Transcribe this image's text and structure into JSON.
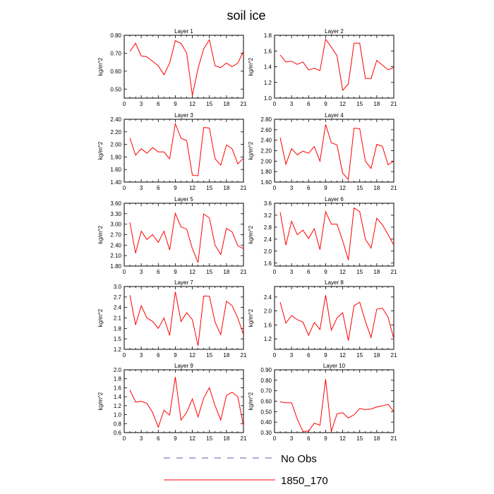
{
  "figure": {
    "title": "soil ice",
    "legend": [
      {
        "label": "No Obs",
        "color": "#5a5ab4",
        "style": "dashed"
      },
      {
        "label": "1850_170",
        "color": "#ff0000",
        "style": "solid"
      }
    ]
  },
  "chart_data": [
    {
      "type": "line",
      "title": "Layer 1",
      "ylabel": "kg/m^2",
      "xlim": [
        0,
        21
      ],
      "xticks": [
        0,
        3,
        6,
        9,
        12,
        15,
        18,
        21
      ],
      "ylim": [
        0.45,
        0.8
      ],
      "yticks": [
        "0.50",
        "0.60",
        "0.70",
        "0.80"
      ],
      "x": [
        1,
        2,
        3,
        4,
        5,
        6,
        7,
        8,
        9,
        10,
        11,
        12,
        13,
        14,
        15,
        16,
        17,
        18,
        19,
        20,
        21
      ],
      "series": [
        {
          "name": "1850_170",
          "color": "#ff0000",
          "values": [
            0.71,
            0.755,
            0.685,
            0.68,
            0.655,
            0.63,
            0.58,
            0.645,
            0.77,
            0.755,
            0.7,
            0.465,
            0.615,
            0.725,
            0.775,
            0.63,
            0.62,
            0.645,
            0.625,
            0.645,
            0.71
          ]
        }
      ]
    },
    {
      "type": "line",
      "title": "Layer 2",
      "ylabel": "kg/m^2",
      "xlim": [
        0,
        21
      ],
      "xticks": [
        0,
        3,
        6,
        9,
        12,
        15,
        18,
        21
      ],
      "ylim": [
        1.0,
        1.8
      ],
      "yticks": [
        "1.0",
        "1.2",
        "1.4",
        "1.6",
        "1.8"
      ],
      "x": [
        1,
        2,
        3,
        4,
        5,
        6,
        7,
        8,
        9,
        10,
        11,
        12,
        13,
        14,
        15,
        16,
        17,
        18,
        19,
        20,
        21
      ],
      "series": [
        {
          "name": "1850_170",
          "color": "#ff0000",
          "values": [
            1.55,
            1.46,
            1.47,
            1.43,
            1.46,
            1.36,
            1.38,
            1.35,
            1.75,
            1.65,
            1.54,
            1.1,
            1.18,
            1.7,
            1.7,
            1.25,
            1.25,
            1.48,
            1.42,
            1.36,
            1.39
          ]
        }
      ]
    },
    {
      "type": "line",
      "title": "Layer 3",
      "ylabel": "kg/m^2",
      "xlim": [
        0,
        21
      ],
      "xticks": [
        0,
        3,
        6,
        9,
        12,
        15,
        18,
        21
      ],
      "ylim": [
        1.4,
        2.4
      ],
      "yticks": [
        "1.40",
        "1.60",
        "1.80",
        "2.00",
        "2.20",
        "2.40"
      ],
      "x": [
        1,
        2,
        3,
        4,
        5,
        6,
        7,
        8,
        9,
        10,
        11,
        12,
        13,
        14,
        15,
        16,
        17,
        18,
        19,
        20,
        21
      ],
      "series": [
        {
          "name": "1850_170",
          "color": "#ff0000",
          "values": [
            2.1,
            1.83,
            1.93,
            1.86,
            1.95,
            1.88,
            1.88,
            1.77,
            2.33,
            2.1,
            2.06,
            1.51,
            1.5,
            2.27,
            2.26,
            1.77,
            1.67,
            1.99,
            1.93,
            1.69,
            1.78
          ]
        }
      ]
    },
    {
      "type": "line",
      "title": "Layer 4",
      "ylabel": "kg/m^2",
      "xlim": [
        0,
        21
      ],
      "xticks": [
        0,
        3,
        6,
        9,
        12,
        15,
        18,
        21
      ],
      "ylim": [
        1.6,
        2.8
      ],
      "yticks": [
        "1.60",
        "1.80",
        "2.00",
        "2.20",
        "2.40",
        "2.60",
        "2.80"
      ],
      "x": [
        1,
        2,
        3,
        4,
        5,
        6,
        7,
        8,
        9,
        10,
        11,
        12,
        13,
        14,
        15,
        16,
        17,
        18,
        19,
        20,
        21
      ],
      "series": [
        {
          "name": "1850_170",
          "color": "#ff0000",
          "values": [
            2.45,
            1.94,
            2.24,
            2.12,
            2.19,
            2.15,
            2.28,
            2.0,
            2.7,
            2.35,
            2.31,
            1.77,
            1.65,
            2.63,
            2.62,
            2.0,
            1.86,
            2.32,
            2.28,
            1.93,
            2.0
          ]
        }
      ]
    },
    {
      "type": "line",
      "title": "Layer 5",
      "ylabel": "kg/m^2",
      "xlim": [
        0,
        21
      ],
      "xticks": [
        0,
        3,
        6,
        9,
        12,
        15,
        18,
        21
      ],
      "ylim": [
        1.8,
        3.6
      ],
      "yticks": [
        "1.80",
        "2.10",
        "2.40",
        "2.70",
        "3.00",
        "3.30",
        "3.60"
      ],
      "x": [
        1,
        2,
        3,
        4,
        5,
        6,
        7,
        8,
        9,
        10,
        11,
        12,
        13,
        14,
        15,
        16,
        17,
        18,
        19,
        20,
        21
      ],
      "series": [
        {
          "name": "1850_170",
          "color": "#ff0000",
          "values": [
            3.05,
            2.17,
            2.8,
            2.56,
            2.7,
            2.48,
            2.8,
            2.26,
            3.31,
            2.92,
            2.86,
            2.3,
            1.9,
            3.29,
            3.18,
            2.4,
            2.13,
            2.88,
            2.78,
            2.38,
            2.3
          ]
        }
      ]
    },
    {
      "type": "line",
      "title": "Layer 6",
      "ylabel": "kg/m^2",
      "xlim": [
        0,
        21
      ],
      "xticks": [
        0,
        3,
        6,
        9,
        12,
        15,
        18,
        21
      ],
      "ylim": [
        1.5,
        3.6
      ],
      "yticks": [
        "1.6",
        "2.0",
        "2.4",
        "2.8",
        "3.2",
        "3.6"
      ],
      "x": [
        1,
        2,
        3,
        4,
        5,
        6,
        7,
        8,
        9,
        10,
        11,
        12,
        13,
        14,
        15,
        16,
        17,
        18,
        19,
        20,
        21
      ],
      "series": [
        {
          "name": "1850_170",
          "color": "#ff0000",
          "values": [
            3.3,
            2.2,
            3.0,
            2.55,
            2.7,
            2.42,
            2.75,
            2.05,
            3.32,
            2.9,
            2.9,
            2.35,
            1.7,
            3.44,
            3.32,
            2.4,
            2.1,
            3.1,
            2.88,
            2.55,
            2.2
          ]
        }
      ]
    },
    {
      "type": "line",
      "title": "Layer 7",
      "ylabel": "kg/m^2",
      "xlim": [
        0,
        21
      ],
      "xticks": [
        0,
        3,
        6,
        9,
        12,
        15,
        18,
        21
      ],
      "ylim": [
        1.2,
        3.0
      ],
      "yticks": [
        "1.2",
        "1.5",
        "1.8",
        "2.1",
        "2.4",
        "2.7",
        "3.0"
      ],
      "x": [
        1,
        2,
        3,
        4,
        5,
        6,
        7,
        8,
        9,
        10,
        11,
        12,
        13,
        14,
        15,
        16,
        17,
        18,
        19,
        20,
        21
      ],
      "series": [
        {
          "name": "1850_170",
          "color": "#ff0000",
          "values": [
            2.75,
            1.9,
            2.45,
            2.1,
            2.0,
            1.8,
            2.1,
            1.6,
            2.85,
            2.0,
            2.25,
            2.05,
            1.3,
            2.73,
            2.72,
            1.98,
            1.62,
            2.58,
            2.45,
            2.1,
            1.62
          ]
        }
      ]
    },
    {
      "type": "line",
      "title": "Layer 8",
      "ylabel": "kg/m^2",
      "xlim": [
        0,
        21
      ],
      "xticks": [
        0,
        3,
        6,
        9,
        12,
        15,
        18,
        21
      ],
      "ylim": [
        0.9,
        2.7
      ],
      "yticks": [
        "1.2",
        "1.6",
        "2.0",
        "2.4"
      ],
      "x": [
        1,
        2,
        3,
        4,
        5,
        6,
        7,
        8,
        9,
        10,
        11,
        12,
        13,
        14,
        15,
        16,
        17,
        18,
        19,
        20,
        21
      ],
      "series": [
        {
          "name": "1850_170",
          "color": "#ff0000",
          "values": [
            2.25,
            1.65,
            1.87,
            1.75,
            1.68,
            1.3,
            1.67,
            1.47,
            2.45,
            1.45,
            1.8,
            1.95,
            1.15,
            2.15,
            2.25,
            1.7,
            1.24,
            2.05,
            2.08,
            1.82,
            1.2
          ]
        }
      ]
    },
    {
      "type": "line",
      "title": "Layer 9",
      "ylabel": "kg/m^2",
      "xlim": [
        0,
        21
      ],
      "xticks": [
        0,
        3,
        6,
        9,
        12,
        15,
        18,
        21
      ],
      "ylim": [
        0.6,
        2.0
      ],
      "yticks": [
        "0.6",
        "0.8",
        "1.0",
        "1.2",
        "1.4",
        "1.6",
        "1.8",
        "2.0"
      ],
      "x": [
        1,
        2,
        3,
        4,
        5,
        6,
        7,
        8,
        9,
        10,
        11,
        12,
        13,
        14,
        15,
        16,
        17,
        18,
        19,
        20,
        21
      ],
      "series": [
        {
          "name": "1850_170",
          "color": "#ff0000",
          "values": [
            1.55,
            1.28,
            1.3,
            1.25,
            1.05,
            0.72,
            1.1,
            0.99,
            1.84,
            0.88,
            1.05,
            1.35,
            0.95,
            1.37,
            1.6,
            1.2,
            0.88,
            1.43,
            1.5,
            1.4,
            0.75
          ]
        }
      ]
    },
    {
      "type": "line",
      "title": "Layer 10",
      "ylabel": "kg/m^2",
      "xlim": [
        0,
        21
      ],
      "xticks": [
        0,
        3,
        6,
        9,
        12,
        15,
        18,
        21
      ],
      "ylim": [
        0.3,
        0.9
      ],
      "yticks": [
        "0.30",
        "0.40",
        "0.50",
        "0.60",
        "0.70",
        "0.80",
        "0.90"
      ],
      "x": [
        1,
        2,
        3,
        4,
        5,
        6,
        7,
        8,
        9,
        10,
        11,
        12,
        13,
        14,
        15,
        16,
        17,
        18,
        19,
        20,
        21
      ],
      "series": [
        {
          "name": "1850_170",
          "color": "#ff0000",
          "values": [
            0.595,
            0.585,
            0.585,
            0.43,
            0.31,
            0.315,
            0.39,
            0.37,
            0.81,
            0.31,
            0.48,
            0.49,
            0.44,
            0.47,
            0.53,
            0.52,
            0.525,
            0.545,
            0.555,
            0.57,
            0.5
          ]
        }
      ]
    }
  ]
}
